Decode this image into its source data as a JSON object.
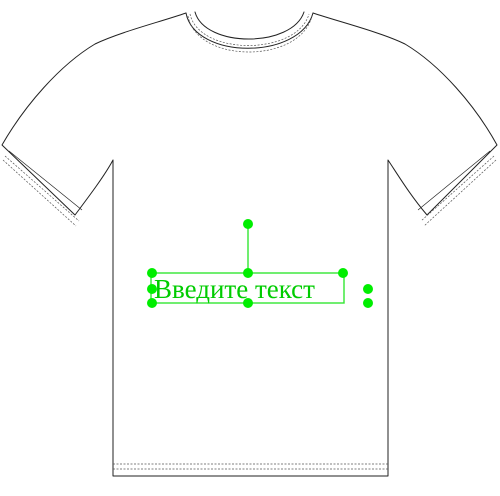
{
  "text_object": {
    "content": "Введите текст",
    "color": "#00cc00"
  },
  "colors": {
    "selection": "#33e633",
    "handle": "#00ee00",
    "shirt_outline": "#222222",
    "background": "#ffffff"
  },
  "icons": {
    "rotate_handle": "rotate-handle-icon",
    "resize_handle": "resize-handle-icon",
    "side_menu": "vertical-dots-icon"
  }
}
